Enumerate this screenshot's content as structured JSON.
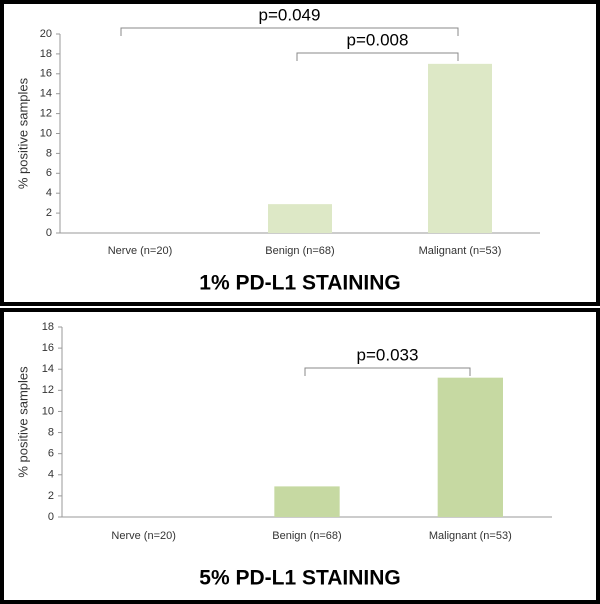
{
  "chart_data": [
    {
      "type": "bar",
      "title": "1% PD-L1 STAINING",
      "y_label": "% positive samples",
      "categories": [
        "Nerve (n=20)",
        "Benign (n=68)",
        "Malignant (n=53)"
      ],
      "values": [
        0,
        2.9,
        17
      ],
      "color": "#dde8c6",
      "ylim": [
        0,
        20
      ],
      "yticks": [
        0,
        2,
        4,
        6,
        8,
        10,
        12,
        14,
        16,
        18,
        20
      ],
      "grid": false,
      "annotations": [
        "p=0.049",
        "p=0.008"
      ]
    },
    {
      "type": "bar",
      "title": "5% PD-L1 STAINING",
      "y_label": "% positive samples",
      "categories": [
        "Nerve (n=20)",
        "Benign (n=68)",
        "Malignant (n=53)"
      ],
      "values": [
        0,
        2.9,
        13.2
      ],
      "color": "#c6d9a2",
      "ylim": [
        0,
        18
      ],
      "yticks": [
        0,
        2,
        4,
        6,
        8,
        10,
        12,
        14,
        16,
        18
      ],
      "grid": false,
      "annotations": [
        "p=0.033"
      ]
    }
  ]
}
